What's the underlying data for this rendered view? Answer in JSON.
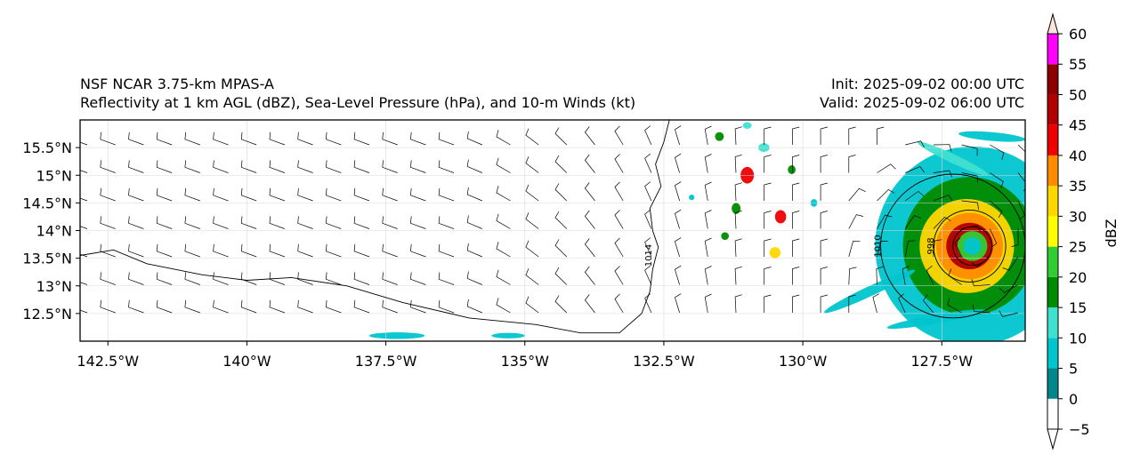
{
  "header": {
    "model": "NSF NCAR 3.75-km MPAS-A",
    "fields": "Reflectivity at 1 km AGL (dBZ), Sea-Level Pressure (hPa), and 10-m Winds (kt)",
    "init": "Init: 2025-09-02 00:00 UTC",
    "valid": "Valid: 2025-09-02 06:00 UTC"
  },
  "map": {
    "extent": {
      "lon": [
        -143.0,
        -126.0
      ],
      "lat": [
        12.0,
        16.0
      ]
    },
    "lon_ticks": [
      {
        "value": -142.5,
        "label": "142.5°W"
      },
      {
        "value": -140.0,
        "label": "140°W"
      },
      {
        "value": -137.5,
        "label": "137.5°W"
      },
      {
        "value": -135.0,
        "label": "135°W"
      },
      {
        "value": -132.5,
        "label": "132.5°W"
      },
      {
        "value": -130.0,
        "label": "130°W"
      },
      {
        "value": -127.5,
        "label": "127.5°W"
      }
    ],
    "lat_ticks": [
      {
        "value": 15.5,
        "label": "15.5°N"
      },
      {
        "value": 15.0,
        "label": "15°N"
      },
      {
        "value": 14.5,
        "label": "14.5°N"
      },
      {
        "value": 14.0,
        "label": "14°N"
      },
      {
        "value": 13.5,
        "label": "13.5°N"
      },
      {
        "value": 13.0,
        "label": "13°N"
      },
      {
        "value": 12.5,
        "label": "12.5°N"
      }
    ],
    "gridlines": true,
    "isobars": [
      {
        "label": "1014",
        "points": [
          [
            -132.4,
            16.0
          ],
          [
            -132.5,
            15.6
          ],
          [
            -132.65,
            15.2
          ],
          [
            -132.55,
            14.8
          ],
          [
            -132.75,
            14.4
          ],
          [
            -132.7,
            14.0
          ],
          [
            -132.6,
            13.7
          ],
          [
            -132.7,
            13.3
          ],
          [
            -132.75,
            12.9
          ],
          [
            -132.9,
            12.5
          ],
          [
            -133.3,
            12.15
          ],
          [
            -134.0,
            12.15
          ],
          [
            -134.8,
            12.3
          ],
          [
            -136.0,
            12.42
          ],
          [
            -137.2,
            12.7
          ],
          [
            -138.2,
            13.0
          ],
          [
            -139.2,
            13.15
          ],
          [
            -140.0,
            13.1
          ],
          [
            -140.8,
            13.2
          ],
          [
            -141.8,
            13.4
          ],
          [
            -142.4,
            13.65
          ],
          [
            -143.0,
            13.55
          ]
        ]
      },
      {
        "label": "1010",
        "circle": {
          "lon": -127.3,
          "lat": 13.72,
          "r_lon": 1.3,
          "r_lat": 1.3
        }
      },
      {
        "label": "998",
        "circle": {
          "lon": -127.0,
          "lat": 13.72,
          "r_lon": 0.65,
          "r_lat": 0.65
        }
      },
      {
        "label": "",
        "circle": {
          "lon": -126.95,
          "lat": 13.72,
          "r_lon": 0.35,
          "r_lat": 0.35
        }
      }
    ],
    "storm_center": {
      "lon": -126.95,
      "lat": 13.72
    },
    "reflectivity_features": [
      {
        "lon": -126.95,
        "lat": 13.72,
        "r_lon": 1.75,
        "r_lat": 1.8,
        "dbz": 8
      },
      {
        "lon": -127.0,
        "lat": 13.72,
        "r_lon": 1.2,
        "r_lat": 1.25,
        "dbz": 18
      },
      {
        "lon": -127.05,
        "lat": 13.72,
        "r_lon": 0.85,
        "r_lat": 0.85,
        "dbz": 32
      },
      {
        "lon": -127.0,
        "lat": 13.72,
        "r_lon": 0.6,
        "r_lat": 0.6,
        "dbz": 38
      },
      {
        "lon": -127.0,
        "lat": 13.72,
        "r_lon": 0.42,
        "r_lat": 0.42,
        "dbz": 45
      },
      {
        "lon": -126.95,
        "lat": 13.72,
        "r_lon": 0.27,
        "r_lat": 0.27,
        "dbz": 22
      },
      {
        "lon": -126.95,
        "lat": 13.72,
        "r_lon": 0.16,
        "r_lat": 0.16,
        "dbz": 8
      },
      {
        "lon": -131.0,
        "lat": 15.0,
        "r_lon": 0.12,
        "r_lat": 0.15,
        "dbz": 42
      },
      {
        "lon": -130.4,
        "lat": 14.25,
        "r_lon": 0.1,
        "r_lat": 0.12,
        "dbz": 42
      },
      {
        "lon": -130.5,
        "lat": 13.6,
        "r_lon": 0.1,
        "r_lat": 0.1,
        "dbz": 32
      },
      {
        "lon": -131.2,
        "lat": 14.4,
        "r_lon": 0.08,
        "r_lat": 0.1,
        "dbz": 18
      },
      {
        "lon": -130.7,
        "lat": 15.5,
        "r_lon": 0.1,
        "r_lat": 0.08,
        "dbz": 12
      },
      {
        "lon": -131.5,
        "lat": 15.7,
        "r_lon": 0.08,
        "r_lat": 0.08,
        "dbz": 18
      },
      {
        "lon": -131.0,
        "lat": 15.9,
        "r_lon": 0.08,
        "r_lat": 0.06,
        "dbz": 12
      },
      {
        "lon": -130.2,
        "lat": 15.1,
        "r_lon": 0.07,
        "r_lat": 0.08,
        "dbz": 18
      },
      {
        "lon": -131.4,
        "lat": 13.9,
        "r_lon": 0.07,
        "r_lat": 0.07,
        "dbz": 18
      },
      {
        "lon": -129.8,
        "lat": 14.5,
        "r_lon": 0.06,
        "r_lat": 0.07,
        "dbz": 8
      },
      {
        "lon": -132.0,
        "lat": 14.6,
        "r_lon": 0.05,
        "r_lat": 0.05,
        "dbz": 8
      },
      {
        "lon": -137.3,
        "lat": 12.1,
        "r_lon": 0.5,
        "r_lat": 0.06,
        "dbz": 8
      },
      {
        "lon": -135.3,
        "lat": 12.1,
        "r_lon": 0.3,
        "r_lat": 0.05,
        "dbz": 8
      },
      {
        "lon": -128.8,
        "lat": 12.9,
        "r_lon": 0.9,
        "r_lat": 0.09,
        "dbz": 8,
        "angle": 25
      },
      {
        "lon": -127.6,
        "lat": 12.4,
        "r_lon": 0.9,
        "r_lat": 0.08,
        "dbz": 8,
        "angle": 10
      },
      {
        "lon": -126.6,
        "lat": 15.7,
        "r_lon": 0.6,
        "r_lat": 0.08,
        "dbz": 8,
        "angle": -5
      },
      {
        "lon": -127.3,
        "lat": 15.3,
        "r_lon": 0.7,
        "r_lat": 0.08,
        "dbz": 12,
        "angle": -25
      }
    ]
  },
  "colorbar": {
    "label": "dBZ",
    "levels": [
      -5,
      0,
      5,
      10,
      15,
      20,
      25,
      30,
      35,
      40,
      45,
      50,
      55,
      60
    ],
    "colors": [
      "#ffffff",
      "#00868b",
      "#00c5cd",
      "#40e0d0",
      "#008b00",
      "#32cd32",
      "#ffff00",
      "#ffd700",
      "#ff8c00",
      "#ee0000",
      "#b00000",
      "#8b0000",
      "#ff00ff",
      "#ffe4dc"
    ],
    "tick_labels": [
      "−5",
      "0",
      "5",
      "10",
      "15",
      "20",
      "25",
      "30",
      "35",
      "40",
      "45",
      "50",
      "55",
      "60"
    ],
    "extend": "both"
  }
}
